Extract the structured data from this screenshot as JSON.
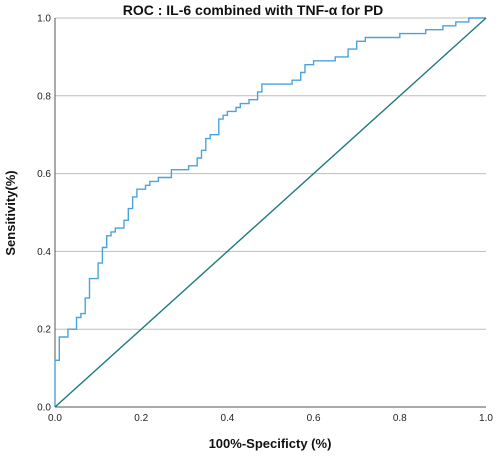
{
  "chart_data": {
    "type": "line",
    "title": "ROC : IL-6 combined with TNF-α for PD",
    "xlabel": "100%-Specificty (%)",
    "ylabel": "Sensitivity(%)",
    "xlim": [
      0,
      1
    ],
    "ylim": [
      0,
      1
    ],
    "x_ticks": [
      "0.0",
      "0.2",
      "0.4",
      "0.6",
      "0.8",
      "1.0"
    ],
    "y_ticks": [
      "0.0",
      "0.2",
      "0.4",
      "0.6",
      "0.8",
      "1.0"
    ],
    "grid": "horizontal",
    "legend": "none",
    "series": [
      {
        "type": "step",
        "color": "#4aa3df",
        "points": [
          [
            0.0,
            0.0
          ],
          [
            0.0,
            0.12
          ],
          [
            0.01,
            0.12
          ],
          [
            0.01,
            0.18
          ],
          [
            0.03,
            0.18
          ],
          [
            0.03,
            0.2
          ],
          [
            0.05,
            0.2
          ],
          [
            0.05,
            0.23
          ],
          [
            0.06,
            0.23
          ],
          [
            0.06,
            0.24
          ],
          [
            0.07,
            0.24
          ],
          [
            0.07,
            0.28
          ],
          [
            0.08,
            0.28
          ],
          [
            0.08,
            0.33
          ],
          [
            0.1,
            0.33
          ],
          [
            0.1,
            0.37
          ],
          [
            0.11,
            0.37
          ],
          [
            0.11,
            0.41
          ],
          [
            0.12,
            0.41
          ],
          [
            0.12,
            0.44
          ],
          [
            0.13,
            0.44
          ],
          [
            0.13,
            0.45
          ],
          [
            0.14,
            0.45
          ],
          [
            0.14,
            0.46
          ],
          [
            0.16,
            0.46
          ],
          [
            0.16,
            0.48
          ],
          [
            0.17,
            0.48
          ],
          [
            0.17,
            0.51
          ],
          [
            0.18,
            0.51
          ],
          [
            0.18,
            0.54
          ],
          [
            0.19,
            0.54
          ],
          [
            0.19,
            0.56
          ],
          [
            0.21,
            0.56
          ],
          [
            0.21,
            0.57
          ],
          [
            0.22,
            0.57
          ],
          [
            0.22,
            0.58
          ],
          [
            0.24,
            0.58
          ],
          [
            0.24,
            0.59
          ],
          [
            0.27,
            0.59
          ],
          [
            0.27,
            0.61
          ],
          [
            0.31,
            0.61
          ],
          [
            0.31,
            0.62
          ],
          [
            0.33,
            0.62
          ],
          [
            0.33,
            0.64
          ],
          [
            0.34,
            0.64
          ],
          [
            0.34,
            0.66
          ],
          [
            0.35,
            0.66
          ],
          [
            0.35,
            0.69
          ],
          [
            0.36,
            0.69
          ],
          [
            0.36,
            0.7
          ],
          [
            0.38,
            0.7
          ],
          [
            0.38,
            0.74
          ],
          [
            0.39,
            0.74
          ],
          [
            0.39,
            0.75
          ],
          [
            0.4,
            0.75
          ],
          [
            0.4,
            0.76
          ],
          [
            0.42,
            0.76
          ],
          [
            0.42,
            0.77
          ],
          [
            0.43,
            0.77
          ],
          [
            0.43,
            0.78
          ],
          [
            0.45,
            0.78
          ],
          [
            0.45,
            0.79
          ],
          [
            0.47,
            0.79
          ],
          [
            0.47,
            0.81
          ],
          [
            0.48,
            0.81
          ],
          [
            0.48,
            0.83
          ],
          [
            0.5,
            0.83
          ],
          [
            0.5,
            0.83
          ],
          [
            0.55,
            0.83
          ],
          [
            0.55,
            0.84
          ],
          [
            0.57,
            0.84
          ],
          [
            0.57,
            0.86
          ],
          [
            0.58,
            0.86
          ],
          [
            0.58,
            0.88
          ],
          [
            0.6,
            0.88
          ],
          [
            0.6,
            0.89
          ],
          [
            0.65,
            0.89
          ],
          [
            0.65,
            0.9
          ],
          [
            0.68,
            0.9
          ],
          [
            0.68,
            0.92
          ],
          [
            0.7,
            0.92
          ],
          [
            0.7,
            0.94
          ],
          [
            0.72,
            0.94
          ],
          [
            0.72,
            0.95
          ],
          [
            0.8,
            0.95
          ],
          [
            0.8,
            0.96
          ],
          [
            0.86,
            0.96
          ],
          [
            0.86,
            0.97
          ],
          [
            0.9,
            0.97
          ],
          [
            0.9,
            0.98
          ],
          [
            0.93,
            0.98
          ],
          [
            0.93,
            0.99
          ],
          [
            0.96,
            0.99
          ],
          [
            0.96,
            1.0
          ],
          [
            1.0,
            1.0
          ]
        ]
      },
      {
        "type": "reference",
        "color": "#1e7b7b",
        "points": [
          [
            0.0,
            0.0
          ],
          [
            1.0,
            1.0
          ]
        ]
      }
    ]
  }
}
